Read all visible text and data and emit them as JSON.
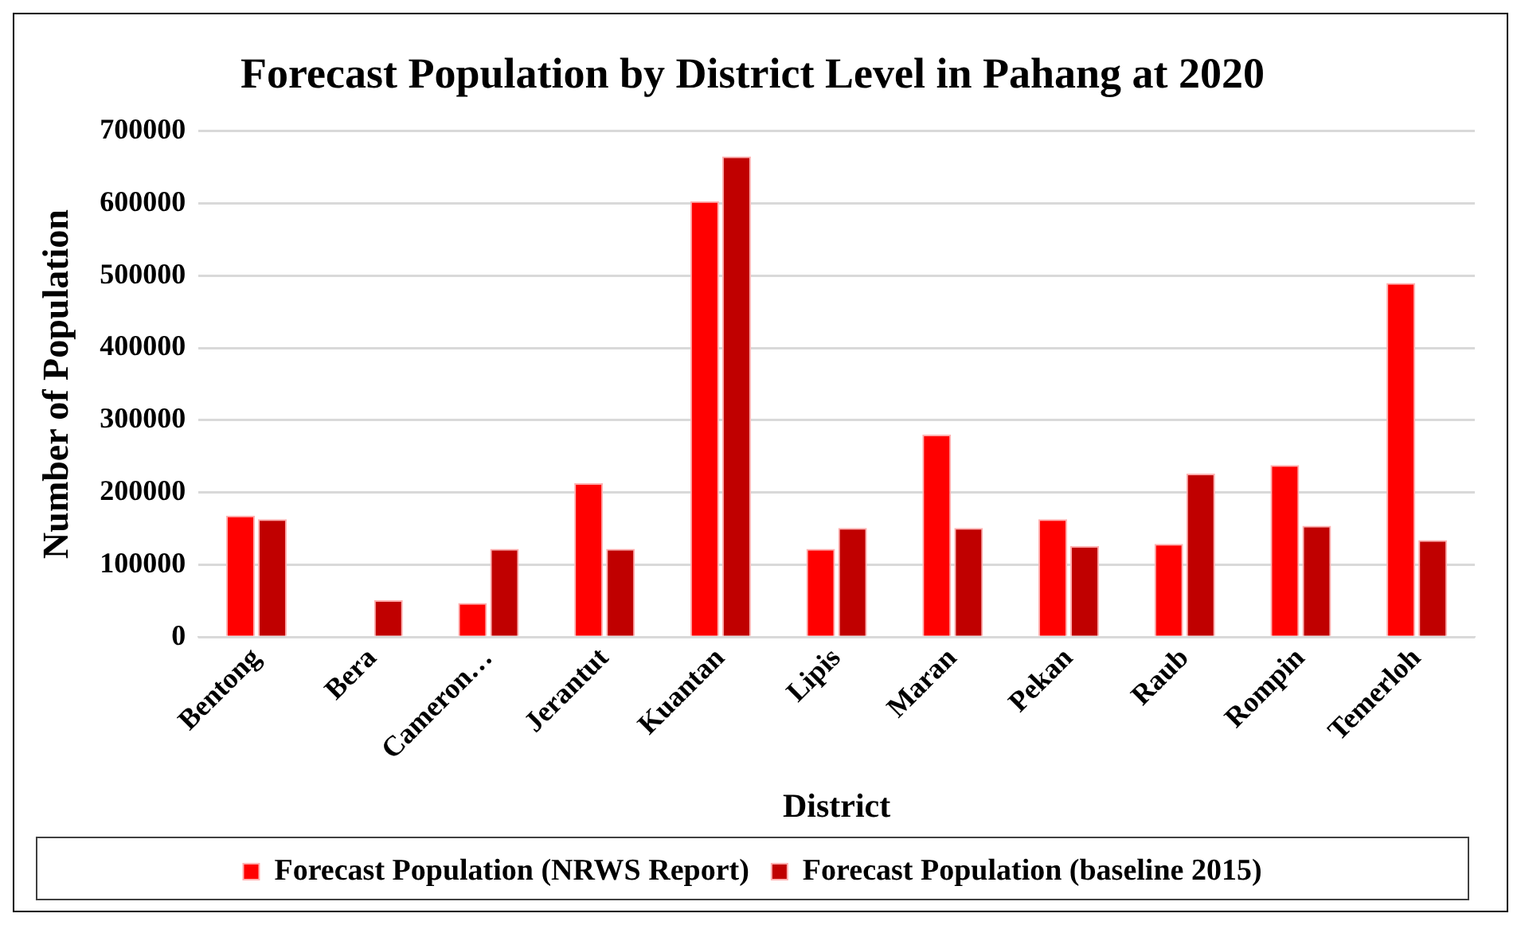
{
  "chart_data": {
    "type": "bar",
    "title": "Forecast Population by District Level in Pahang at 2020",
    "xlabel": "District",
    "ylabel": "Number of Population",
    "categories": [
      "Bentong",
      "Bera",
      "Cameron…",
      "Jerantut",
      "Kuantan",
      "Lipis",
      "Maran",
      "Pekan",
      "Raub",
      "Rompin",
      "Temerloh"
    ],
    "series": [
      {
        "name": "Forecast Population (NRWS Report)",
        "color": "#ff0000",
        "values": [
          168000,
          null,
          47000,
          213000,
          603000,
          122000,
          280000,
          163000,
          129000,
          238000,
          490000
        ]
      },
      {
        "name": "Forecast Population (baseline 2015)",
        "color": "#c00000",
        "values": [
          163000,
          51000,
          122000,
          122000,
          665000,
          151000,
          151000,
          126000,
          226000,
          154000,
          134000
        ]
      }
    ],
    "ylim": [
      0,
      700000
    ],
    "yticks": [
      0,
      100000,
      200000,
      300000,
      400000,
      500000,
      600000,
      700000
    ],
    "grid": "y",
    "legend": "bottom"
  }
}
